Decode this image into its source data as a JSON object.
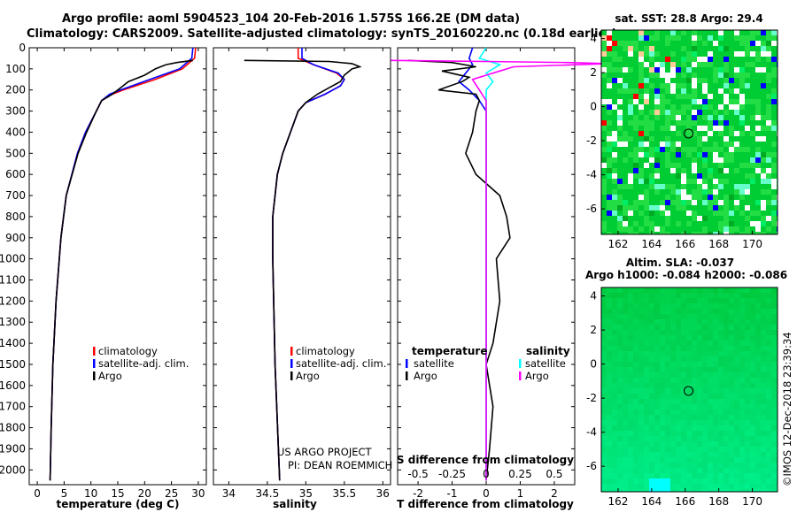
{
  "header": {
    "title_line1": "Argo profile: aoml 5904523_104 20-Feb-2016 1.575S 166.2E (DM data)",
    "title_line2": "Climatology: CARS2009. Satellite-adjusted climatology: synTS_20160220.nc (0.18d earlier)"
  },
  "colors": {
    "climatology": "#ff0000",
    "satellite": "#0000ff",
    "argo": "#000000",
    "salinity_sat": "#00ffff",
    "salinity_argo": "#ff00ff"
  },
  "chart_data": [
    {
      "type": "line",
      "id": "temperature",
      "xlabel": "temperature (deg C)",
      "xticks": [
        0,
        5,
        10,
        15,
        20,
        25,
        30
      ],
      "xlim": [
        -1.5,
        31.5
      ],
      "ylim": [
        0,
        2070
      ],
      "yticks": [
        0,
        100,
        200,
        300,
        400,
        500,
        600,
        700,
        800,
        900,
        1000,
        1100,
        1200,
        1300,
        1400,
        1500,
        1600,
        1700,
        1800,
        1900,
        2000
      ],
      "legend": [
        "climatology",
        "satellite-adj. clim.",
        "Argo"
      ],
      "series": [
        {
          "name": "climatology",
          "depth": [
            0,
            50,
            100,
            150,
            200,
            220,
            250,
            300,
            400,
            500,
            700,
            900,
            1200,
            1500,
            1800,
            2050
          ],
          "values": [
            29.5,
            29.3,
            27,
            22,
            16,
            14,
            12,
            11,
            9,
            7.5,
            5.4,
            4.4,
            3.5,
            2.9,
            2.6,
            2.4
          ]
        },
        {
          "name": "satellite-adj. clim.",
          "depth": [
            0,
            50,
            100,
            150,
            200,
            220,
            250,
            300,
            400,
            500,
            700,
            900,
            1200,
            1500,
            1800,
            2050
          ],
          "values": [
            29.0,
            28.8,
            26.5,
            21,
            15.5,
            13.5,
            12,
            11,
            9,
            7.5,
            5.4,
            4.4,
            3.5,
            2.9,
            2.6,
            2.4
          ]
        },
        {
          "name": "Argo",
          "depth": [
            60,
            70,
            80,
            100,
            130,
            160,
            200,
            220,
            250,
            300,
            400,
            500,
            700,
            900,
            1200,
            1500,
            1800,
            2050
          ],
          "values": [
            29.0,
            26,
            24,
            22,
            20,
            17,
            15,
            14,
            12,
            11,
            9.2,
            7.6,
            5.4,
            4.4,
            3.5,
            2.9,
            2.6,
            2.4
          ]
        }
      ]
    },
    {
      "type": "line",
      "id": "salinity",
      "xlabel": "salinity",
      "xticks": [
        34,
        34.5,
        35,
        35.5,
        36
      ],
      "xlim": [
        33.8,
        36.1
      ],
      "ylim": [
        0,
        2070
      ],
      "legend": [
        "climatology",
        "satellite-adj. clim.",
        "Argo"
      ],
      "credit_line1": "US ARGO PROJECT",
      "credit_line2": "PI: DEAN ROEMMICH",
      "series": [
        {
          "name": "climatology",
          "depth": [
            0,
            50,
            80,
            120,
            150,
            180,
            220,
            260,
            300,
            400,
            500,
            600,
            800,
            1000,
            1500,
            2050
          ],
          "values": [
            34.9,
            34.9,
            35.1,
            35.4,
            35.5,
            35.45,
            35.25,
            35.0,
            34.9,
            34.8,
            34.7,
            34.63,
            34.57,
            34.57,
            34.6,
            34.66
          ]
        },
        {
          "name": "satellite-adj. clim.",
          "depth": [
            0,
            50,
            80,
            120,
            150,
            180,
            220,
            260,
            300,
            400,
            500,
            600,
            800,
            1000,
            1500,
            2050
          ],
          "values": [
            34.95,
            34.95,
            35.1,
            35.42,
            35.5,
            35.45,
            35.25,
            35.0,
            34.9,
            34.8,
            34.7,
            34.63,
            34.57,
            34.57,
            34.6,
            34.66
          ]
        },
        {
          "name": "Argo",
          "depth": [
            60,
            65,
            75,
            90,
            100,
            130,
            160,
            190,
            220,
            260,
            300,
            400,
            500,
            600,
            800,
            1000,
            1500,
            2050
          ],
          "values": [
            34.2,
            35.3,
            35.6,
            35.7,
            35.6,
            35.5,
            35.45,
            35.3,
            35.15,
            35.0,
            34.9,
            34.8,
            34.7,
            34.63,
            34.57,
            34.57,
            34.6,
            34.66
          ]
        }
      ]
    },
    {
      "type": "line",
      "id": "difference",
      "xlabel": "T difference from climatology",
      "xlabel_top": "S difference from climatology",
      "xticks_T": [
        -2,
        -1,
        0,
        1,
        2
      ],
      "xticks_S": [
        "-0.5",
        "-0.25",
        "0",
        "0.25",
        "0.5"
      ],
      "xlim": [
        -2.6,
        2.6
      ],
      "ylim": [
        0,
        2070
      ],
      "legend_left_title": "temperature",
      "legend_right_title": "salinity",
      "legend_left": [
        "satellite",
        "Argo"
      ],
      "legend_right": [
        "satellite",
        "Argo"
      ],
      "series": [
        {
          "name": "temperature satellite",
          "depth": [
            0,
            50,
            80,
            120,
            160,
            200,
            250,
            300,
            400,
            600,
            1000,
            2050
          ],
          "values": [
            -0.4,
            -0.5,
            -0.4,
            -0.6,
            -0.8,
            -0.5,
            -0.2,
            0.0,
            0.0,
            0.0,
            0.0,
            0.0
          ]
        },
        {
          "name": "temperature Argo",
          "depth": [
            60,
            70,
            90,
            110,
            140,
            160,
            200,
            220,
            250,
            300,
            400,
            500,
            600,
            700,
            800,
            900,
            1000,
            1200,
            1400,
            1500,
            1700,
            1900,
            2050
          ],
          "values": [
            -2.3,
            -1.0,
            -0.3,
            -1.3,
            -0.5,
            -0.7,
            -1.4,
            -0.3,
            -0.2,
            -0.3,
            -0.4,
            -0.6,
            -0.3,
            0.4,
            0.6,
            0.7,
            0.3,
            0.4,
            0.2,
            0.0,
            0.2,
            0.1,
            0.0
          ]
        },
        {
          "name": "salinity satellite",
          "depth": [
            0,
            50,
            80,
            120,
            160,
            200,
            300,
            500,
            1000,
            2050
          ],
          "values": [
            0.0,
            -0.05,
            0.1,
            0.0,
            0.05,
            0.0,
            0.0,
            0.0,
            0.0,
            0.0
          ]
        },
        {
          "name": "salinity Argo",
          "depth": [
            60,
            65,
            70,
            75,
            90,
            110,
            130,
            150,
            200,
            250,
            300,
            400,
            600,
            1000,
            2050
          ],
          "values": [
            -0.7,
            0.0,
            0.6,
            0.9,
            0.2,
            0.1,
            0.0,
            -0.1,
            -0.05,
            0.0,
            0.0,
            0.0,
            0.0,
            0.0,
            0.0
          ]
        }
      ]
    },
    {
      "type": "heatmap",
      "id": "sst-map",
      "title": "sat. SST: 28.8 Argo: 29.4",
      "xticks": [
        162,
        164,
        166,
        168,
        170
      ],
      "yticks": [
        4,
        2,
        0,
        -2,
        -4,
        -6
      ],
      "xlim": [
        161,
        171.5
      ],
      "ylim": [
        -7.5,
        4.5
      ],
      "argo_position": [
        166.2,
        -1.575
      ]
    },
    {
      "type": "heatmap",
      "id": "sla-map",
      "title_line1": "Altim. SLA: -0.037",
      "title_line2": "Argo h1000: -0.084 h2000: -0.086",
      "xticks": [
        162,
        164,
        166,
        168,
        170
      ],
      "yticks": [
        4,
        2,
        0,
        -2,
        -4,
        -6
      ],
      "xlim": [
        161,
        171.5
      ],
      "ylim": [
        -7.5,
        4.5
      ],
      "argo_position": [
        166.2,
        -1.575
      ]
    }
  ],
  "footer": {
    "credit": "©IMOS 12-Dec-2018 23:39:34"
  }
}
